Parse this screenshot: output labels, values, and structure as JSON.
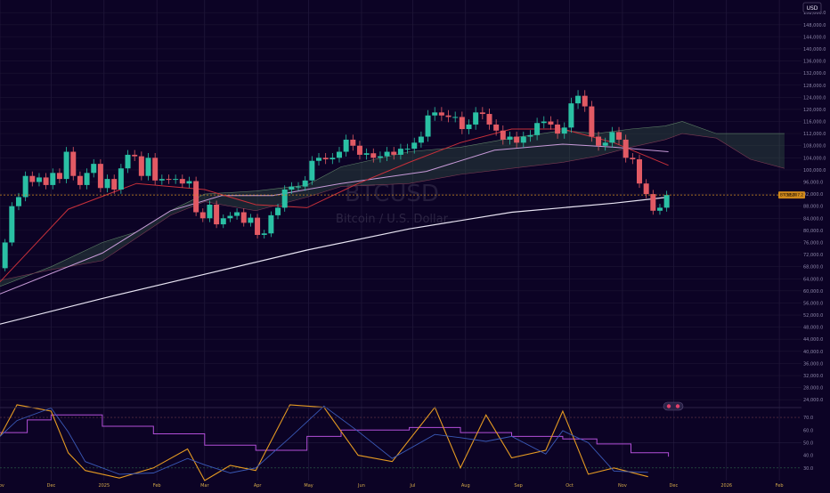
{
  "chart_data": {
    "type": "candlestick",
    "symbol": "BTCUSD",
    "currency_label": "USD",
    "watermark": {
      "ticker": "BTCUSD",
      "name": "Bitcoin / U.S. Dollar"
    },
    "price_tag": {
      "symbol": "BTCUSD",
      "value": "91,707.2"
    },
    "y_ticks": [
      "152,000.0",
      "148,000.0",
      "144,000.0",
      "140,000.0",
      "136,000.0",
      "132,000.0",
      "128,000.0",
      "124,000.0",
      "120,000.0",
      "116,000.0",
      "112,000.0",
      "108,000.0",
      "104,000.0",
      "100,000.0",
      "96,000.0",
      "92,000.0",
      "88,000.0",
      "84,000.0",
      "80,000.0",
      "76,000.0",
      "72,000.0",
      "68,000.0",
      "64,000.0",
      "60,000.0",
      "56,000.0",
      "52,000.0",
      "48,000.0",
      "44,000.0",
      "40,000.0",
      "36,000.0",
      "32,000.0",
      "28,000.0",
      "24,000.0"
    ],
    "y_tick_values": [
      152000,
      148000,
      144000,
      140000,
      136000,
      132000,
      128000,
      124000,
      120000,
      116000,
      112000,
      108000,
      104000,
      100000,
      96000,
      92000,
      88000,
      84000,
      80000,
      76000,
      72000,
      68000,
      64000,
      60000,
      56000,
      52000,
      48000,
      44000,
      40000,
      36000,
      32000,
      28000,
      24000
    ],
    "x_ticks": [
      "Nov",
      "Dec",
      "2025",
      "Feb",
      "Mar",
      "Apr",
      "May",
      "Jun",
      "Jul",
      "Aug",
      "Sep",
      "Oct",
      "Nov",
      "Dec",
      "2026",
      "Feb"
    ],
    "x_tick_values": [
      0,
      30,
      61,
      92,
      120,
      151,
      181,
      212,
      242,
      273,
      304,
      334,
      365,
      395,
      426,
      457
    ],
    "x_range": [
      0,
      470
    ],
    "y_range": [
      22000,
      155000
    ],
    "last_price": 91707.2,
    "closes": [
      {
        "d": 0,
        "v": 67500
      },
      {
        "d": 4,
        "v": 76000
      },
      {
        "d": 8,
        "v": 88000
      },
      {
        "d": 12,
        "v": 91000
      },
      {
        "d": 16,
        "v": 98000
      },
      {
        "d": 20,
        "v": 96000
      },
      {
        "d": 24,
        "v": 97500
      },
      {
        "d": 28,
        "v": 95000
      },
      {
        "d": 32,
        "v": 99000
      },
      {
        "d": 36,
        "v": 97000
      },
      {
        "d": 40,
        "v": 106000
      },
      {
        "d": 44,
        "v": 98000
      },
      {
        "d": 48,
        "v": 95000
      },
      {
        "d": 52,
        "v": 99000
      },
      {
        "d": 56,
        "v": 102000
      },
      {
        "d": 60,
        "v": 94000
      },
      {
        "d": 64,
        "v": 97000
      },
      {
        "d": 68,
        "v": 93500
      },
      {
        "d": 72,
        "v": 100500
      },
      {
        "d": 76,
        "v": 105000
      },
      {
        "d": 80,
        "v": 104500
      },
      {
        "d": 84,
        "v": 98000
      },
      {
        "d": 88,
        "v": 104000
      },
      {
        "d": 92,
        "v": 96500
      },
      {
        "d": 96,
        "v": 97000
      },
      {
        "d": 100,
        "v": 96800
      },
      {
        "d": 104,
        "v": 97000
      },
      {
        "d": 108,
        "v": 95500
      },
      {
        "d": 112,
        "v": 96300
      },
      {
        "d": 116,
        "v": 86000
      },
      {
        "d": 120,
        "v": 84000
      },
      {
        "d": 124,
        "v": 88500
      },
      {
        "d": 128,
        "v": 82000
      },
      {
        "d": 132,
        "v": 84000
      },
      {
        "d": 136,
        "v": 84800
      },
      {
        "d": 140,
        "v": 86000
      },
      {
        "d": 144,
        "v": 82500
      },
      {
        "d": 148,
        "v": 84200
      },
      {
        "d": 152,
        "v": 78500
      },
      {
        "d": 156,
        "v": 79000
      },
      {
        "d": 160,
        "v": 85000
      },
      {
        "d": 164,
        "v": 87500
      },
      {
        "d": 168,
        "v": 93500
      },
      {
        "d": 172,
        "v": 94500
      },
      {
        "d": 176,
        "v": 94500
      },
      {
        "d": 180,
        "v": 96500
      },
      {
        "d": 184,
        "v": 103000
      },
      {
        "d": 188,
        "v": 104000
      },
      {
        "d": 192,
        "v": 103500
      },
      {
        "d": 196,
        "v": 104000
      },
      {
        "d": 200,
        "v": 106000
      },
      {
        "d": 204,
        "v": 110000
      },
      {
        "d": 208,
        "v": 108000
      },
      {
        "d": 212,
        "v": 105000
      },
      {
        "d": 216,
        "v": 105500
      },
      {
        "d": 220,
        "v": 104000
      },
      {
        "d": 224,
        "v": 104500
      },
      {
        "d": 228,
        "v": 106000
      },
      {
        "d": 232,
        "v": 105000
      },
      {
        "d": 236,
        "v": 107000
      },
      {
        "d": 240,
        "v": 107000
      },
      {
        "d": 244,
        "v": 109000
      },
      {
        "d": 248,
        "v": 111000
      },
      {
        "d": 252,
        "v": 118000
      },
      {
        "d": 256,
        "v": 119000
      },
      {
        "d": 260,
        "v": 118000
      },
      {
        "d": 264,
        "v": 117500
      },
      {
        "d": 268,
        "v": 117500
      },
      {
        "d": 272,
        "v": 113500
      },
      {
        "d": 276,
        "v": 115000
      },
      {
        "d": 280,
        "v": 119000
      },
      {
        "d": 284,
        "v": 118500
      },
      {
        "d": 288,
        "v": 115000
      },
      {
        "d": 292,
        "v": 113000
      },
      {
        "d": 296,
        "v": 110000
      },
      {
        "d": 300,
        "v": 111000
      },
      {
        "d": 304,
        "v": 109000
      },
      {
        "d": 308,
        "v": 111000
      },
      {
        "d": 312,
        "v": 111500
      },
      {
        "d": 316,
        "v": 115500
      },
      {
        "d": 320,
        "v": 116000
      },
      {
        "d": 324,
        "v": 115000
      },
      {
        "d": 328,
        "v": 112000
      },
      {
        "d": 332,
        "v": 114000
      },
      {
        "d": 336,
        "v": 122000
      },
      {
        "d": 340,
        "v": 124500
      },
      {
        "d": 344,
        "v": 121000
      },
      {
        "d": 348,
        "v": 111000
      },
      {
        "d": 352,
        "v": 108000
      },
      {
        "d": 356,
        "v": 109000
      },
      {
        "d": 360,
        "v": 112500
      },
      {
        "d": 364,
        "v": 110000
      },
      {
        "d": 368,
        "v": 104000
      },
      {
        "d": 372,
        "v": 103500
      },
      {
        "d": 376,
        "v": 95500
      },
      {
        "d": 380,
        "v": 92000
      },
      {
        "d": 384,
        "v": 86500
      },
      {
        "d": 388,
        "v": 87500
      },
      {
        "d": 392,
        "v": 91700
      }
    ],
    "ma200": [
      {
        "d": 0,
        "v": 49000
      },
      {
        "d": 60,
        "v": 57500
      },
      {
        "d": 120,
        "v": 65500
      },
      {
        "d": 180,
        "v": 73500
      },
      {
        "d": 240,
        "v": 80500
      },
      {
        "d": 300,
        "v": 86000
      },
      {
        "d": 360,
        "v": 89000
      },
      {
        "d": 392,
        "v": 91000
      }
    ],
    "ma100": [
      {
        "d": 0,
        "v": 59000
      },
      {
        "d": 60,
        "v": 72500
      },
      {
        "d": 100,
        "v": 86500
      },
      {
        "d": 130,
        "v": 91500
      },
      {
        "d": 160,
        "v": 91500
      },
      {
        "d": 200,
        "v": 95500
      },
      {
        "d": 250,
        "v": 99500
      },
      {
        "d": 290,
        "v": 106500
      },
      {
        "d": 330,
        "v": 108500
      },
      {
        "d": 360,
        "v": 107500
      },
      {
        "d": 392,
        "v": 106000
      }
    ],
    "ma50": [
      {
        "d": 0,
        "v": 63000
      },
      {
        "d": 40,
        "v": 87000
      },
      {
        "d": 80,
        "v": 95500
      },
      {
        "d": 120,
        "v": 93500
      },
      {
        "d": 150,
        "v": 88500
      },
      {
        "d": 180,
        "v": 87500
      },
      {
        "d": 210,
        "v": 95500
      },
      {
        "d": 240,
        "v": 102500
      },
      {
        "d": 270,
        "v": 109000
      },
      {
        "d": 300,
        "v": 113500
      },
      {
        "d": 330,
        "v": 113500
      },
      {
        "d": 360,
        "v": 109000
      },
      {
        "d": 392,
        "v": 101500
      }
    ],
    "cloud_upper": [
      {
        "d": 0,
        "v": 61500
      },
      {
        "d": 30,
        "v": 68000
      },
      {
        "d": 60,
        "v": 76000
      },
      {
        "d": 80,
        "v": 79500
      },
      {
        "d": 100,
        "v": 86500
      },
      {
        "d": 120,
        "v": 92000
      },
      {
        "d": 150,
        "v": 93000
      },
      {
        "d": 180,
        "v": 95000
      },
      {
        "d": 200,
        "v": 101000
      },
      {
        "d": 240,
        "v": 106000
      },
      {
        "d": 270,
        "v": 107500
      },
      {
        "d": 300,
        "v": 110500
      },
      {
        "d": 330,
        "v": 113000
      },
      {
        "d": 350,
        "v": 112000
      },
      {
        "d": 370,
        "v": 113500
      },
      {
        "d": 390,
        "v": 114500
      },
      {
        "d": 400,
        "v": 116000
      },
      {
        "d": 420,
        "v": 112000
      },
      {
        "d": 440,
        "v": 112000
      },
      {
        "d": 460,
        "v": 112000
      }
    ],
    "cloud_lower": [
      {
        "d": 0,
        "v": 63500
      },
      {
        "d": 30,
        "v": 67000
      },
      {
        "d": 60,
        "v": 70000
      },
      {
        "d": 80,
        "v": 77500
      },
      {
        "d": 100,
        "v": 85000
      },
      {
        "d": 120,
        "v": 89500
      },
      {
        "d": 150,
        "v": 86500
      },
      {
        "d": 180,
        "v": 91000
      },
      {
        "d": 200,
        "v": 94500
      },
      {
        "d": 240,
        "v": 95500
      },
      {
        "d": 270,
        "v": 98500
      },
      {
        "d": 300,
        "v": 100500
      },
      {
        "d": 330,
        "v": 102500
      },
      {
        "d": 350,
        "v": 104500
      },
      {
        "d": 370,
        "v": 107500
      },
      {
        "d": 390,
        "v": 110000
      },
      {
        "d": 400,
        "v": 112000
      },
      {
        "d": 420,
        "v": 110500
      },
      {
        "d": 440,
        "v": 103500
      },
      {
        "d": 460,
        "v": 100500
      }
    ],
    "oscillator": {
      "y_ticks": [
        "70.0",
        "60.0",
        "50.0",
        "40.0",
        "30.0"
      ],
      "y_tick_values": [
        70,
        60,
        50,
        40,
        30
      ],
      "y_range": [
        20,
        75
      ],
      "rsi": [
        {
          "d": 0,
          "v": 58
        },
        {
          "d": 16,
          "v": 68
        },
        {
          "d": 30,
          "v": 72
        },
        {
          "d": 60,
          "v": 63
        },
        {
          "d": 90,
          "v": 57
        },
        {
          "d": 120,
          "v": 48
        },
        {
          "d": 150,
          "v": 44
        },
        {
          "d": 180,
          "v": 55
        },
        {
          "d": 200,
          "v": 60
        },
        {
          "d": 240,
          "v": 62
        },
        {
          "d": 270,
          "v": 58
        },
        {
          "d": 300,
          "v": 55
        },
        {
          "d": 330,
          "v": 53
        },
        {
          "d": 350,
          "v": 49
        },
        {
          "d": 370,
          "v": 42
        },
        {
          "d": 392,
          "v": 39
        }
      ],
      "stoch_k": [
        {
          "d": 0,
          "v": 55
        },
        {
          "d": 10,
          "v": 80
        },
        {
          "d": 30,
          "v": 75
        },
        {
          "d": 40,
          "v": 42
        },
        {
          "d": 50,
          "v": 28
        },
        {
          "d": 70,
          "v": 22
        },
        {
          "d": 90,
          "v": 30
        },
        {
          "d": 110,
          "v": 45
        },
        {
          "d": 120,
          "v": 20
        },
        {
          "d": 135,
          "v": 32
        },
        {
          "d": 150,
          "v": 28
        },
        {
          "d": 170,
          "v": 80
        },
        {
          "d": 190,
          "v": 78
        },
        {
          "d": 210,
          "v": 40
        },
        {
          "d": 230,
          "v": 35
        },
        {
          "d": 255,
          "v": 78
        },
        {
          "d": 270,
          "v": 30
        },
        {
          "d": 285,
          "v": 72
        },
        {
          "d": 300,
          "v": 38
        },
        {
          "d": 320,
          "v": 44
        },
        {
          "d": 330,
          "v": 75
        },
        {
          "d": 345,
          "v": 25
        },
        {
          "d": 360,
          "v": 30
        },
        {
          "d": 380,
          "v": 23
        }
      ]
    }
  }
}
